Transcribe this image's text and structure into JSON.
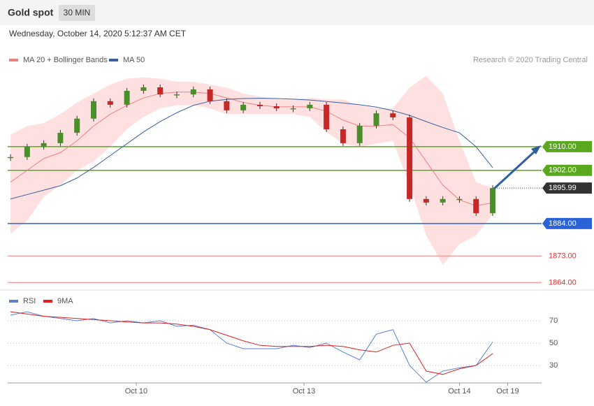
{
  "header": {
    "title": "Gold spot",
    "timeframe": "30 MIN",
    "date": "Wednesday, October 14, 2020 5:12:37 AM CET"
  },
  "chart_data": [
    {
      "type": "candlestick",
      "x": [
        0,
        1,
        2,
        3,
        4,
        5,
        6,
        7,
        8,
        9,
        10,
        11,
        12,
        13,
        14,
        15,
        16,
        17,
        18,
        19,
        20,
        21,
        22,
        23,
        24,
        25,
        26,
        27,
        28,
        29
      ],
      "xlim": [
        -0.17,
        31.94
      ],
      "xticks": [
        {
          "value": 7.56,
          "label": "Oct 10"
        },
        {
          "value": 17.65,
          "label": "Oct 13"
        },
        {
          "value": 27,
          "label": "Oct 14"
        },
        {
          "value": 29.9,
          "label": "Oct 19"
        }
      ],
      "ylim": [
        1861.5,
        1936
      ],
      "up_color": "#4a8f2a",
      "down_color": "#c62828",
      "band_color": "#ffe0e0",
      "copyright": "Research © 2020 Trading Central",
      "series": [
        {
          "name": "MA 20 + Bollinger Bands",
          "color": "#f08080",
          "values": [
            1898,
            1902,
            1906,
            1908,
            1912,
            1917,
            1921,
            1924,
            1926.5,
            1928,
            1928.5,
            1928.5,
            1928,
            1926.5,
            1925,
            1924,
            1923.5,
            1923.5,
            1923.5,
            1922,
            1919,
            1917,
            1917,
            1917.5,
            1913,
            1905,
            1897,
            1892,
            1890,
            1891
          ],
          "upper": [
            1914,
            1917,
            1918,
            1921,
            1925,
            1928,
            1931,
            1933,
            1933.5,
            1933,
            1932,
            1932,
            1931,
            1930,
            1928,
            1927,
            1926,
            1926,
            1926.5,
            1926,
            1926,
            1924,
            1923,
            1923,
            1930,
            1934,
            1928,
            1912,
            1898,
            1896
          ],
          "lower": [
            1880.5,
            1885,
            1893,
            1897,
            1902,
            1905,
            1910,
            1916,
            1920,
            1923,
            1924,
            1924,
            1923,
            1921,
            1921,
            1921,
            1921,
            1921,
            1920,
            1915,
            1911,
            1910,
            1911,
            1912,
            1897,
            1880,
            1870,
            1877,
            1880,
            1887
          ]
        },
        {
          "name": "MA 50",
          "color": "#3a5f9f",
          "values": [
            1892.3,
            1893.8,
            1895.3,
            1896.8,
            1899.4,
            1903,
            1907,
            1911,
            1915,
            1918.5,
            1921.5,
            1924,
            1925.4,
            1926,
            1926.3,
            1926.4,
            1926.3,
            1926.1,
            1925.8,
            1925.3,
            1924.8,
            1924.2,
            1923.4,
            1922.2,
            1920.6,
            1918.5,
            1916.5,
            1914.7,
            1910,
            1902.9
          ]
        }
      ],
      "price": [
        1906.5,
        1910,
        1911.2,
        1914.7,
        1919.5,
        1925.4,
        1924.2,
        1928.9,
        1930.1,
        1927.7,
        1927.7,
        1929.4,
        1925.4,
        1922.3,
        1924.2,
        1923.7,
        1923,
        1923,
        1924.2,
        1915.9,
        1911.2,
        1917.1,
        1921.3,
        1919.9,
        1892.3,
        1891.1,
        1892.3,
        1892.3,
        1887.5,
        1896
      ],
      "levels": [
        {
          "value": 1910,
          "label": "1910.00",
          "color": "#5aa81e",
          "style": "solid"
        },
        {
          "value": 1902,
          "label": "1902.00",
          "color": "#5aa81e",
          "style": "solid"
        },
        {
          "value": 1895.99,
          "label": "1895.99",
          "color": "#333333",
          "style": "dotted"
        },
        {
          "value": 1884,
          "label": "1884.00",
          "color": "#2a63d8",
          "style": "solid"
        },
        {
          "value": 1873,
          "label": "1873.00",
          "color": "#f5a0a0",
          "style": "solid"
        },
        {
          "value": 1864,
          "label": "1864.00",
          "color": "#f5a0a0",
          "style": "solid"
        }
      ]
    },
    {
      "type": "line",
      "ylim": [
        16.25,
        88.1
      ],
      "yticks": [
        70,
        50,
        30
      ],
      "series": [
        {
          "name": "RSI",
          "color": "#5b7fd6",
          "values": [
            75,
            78,
            74,
            72,
            70,
            72,
            68,
            70,
            68,
            70,
            65,
            66,
            62,
            50,
            45,
            45,
            45,
            48,
            46,
            50,
            42,
            35,
            58,
            62,
            30,
            15,
            25,
            28,
            30,
            51
          ]
        },
        {
          "name": "9MA",
          "color": "#e02020",
          "values": [
            78,
            76,
            74,
            73,
            72,
            71,
            70,
            69,
            68,
            68,
            67,
            65,
            62,
            57,
            52,
            48,
            47,
            47,
            47,
            48,
            47,
            44,
            42,
            48,
            50,
            25,
            22,
            27,
            30,
            40.6
          ]
        }
      ]
    }
  ]
}
